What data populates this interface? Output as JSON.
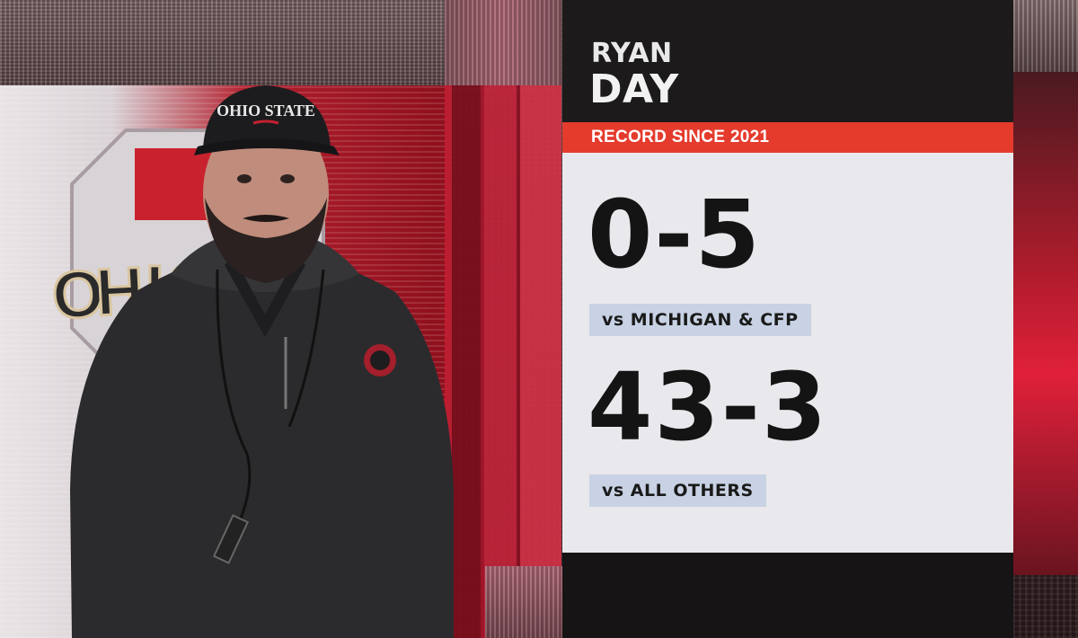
{
  "logo": {
    "text": "OHIO STATE"
  },
  "cap": {
    "text": "OHIO STATE"
  },
  "card": {
    "first_name": "RYAN",
    "last_name": "DAY",
    "header_label": "RECORD SINCE 2021",
    "stats": [
      {
        "value": "0-5",
        "label": "vs MICHIGAN & CFP"
      },
      {
        "value": "43-3",
        "label": "vs ALL OTHERS"
      }
    ]
  },
  "colors": {
    "accent_red": "#e53b2d",
    "chip_blue": "#c8d2e4",
    "card_bg": "#e9e8ec",
    "card_dark": "#171516",
    "scarlet": "#b21f2d"
  }
}
